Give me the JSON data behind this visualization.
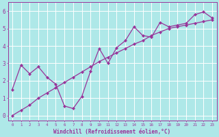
{
  "xlabel": "Windchill (Refroidissement éolien,°C)",
  "bg_color": "#aee8e8",
  "grid_color": "#c8e8e8",
  "line_color": "#993399",
  "xlim": [
    -0.5,
    23.5
  ],
  "ylim": [
    -0.3,
    6.5
  ],
  "xticks": [
    0,
    1,
    2,
    3,
    4,
    5,
    6,
    7,
    8,
    9,
    10,
    11,
    12,
    13,
    14,
    15,
    16,
    17,
    18,
    19,
    20,
    21,
    22,
    23
  ],
  "yticks": [
    0,
    1,
    2,
    3,
    4,
    5,
    6
  ],
  "line1_x": [
    0,
    1,
    2,
    3,
    4,
    5,
    6,
    7,
    8,
    9,
    10,
    11,
    12,
    13,
    14,
    15,
    16,
    17,
    18,
    19,
    20,
    21,
    22,
    23
  ],
  "line1_y": [
    1.5,
    2.9,
    2.4,
    2.8,
    2.2,
    1.8,
    0.55,
    0.4,
    1.1,
    2.55,
    3.85,
    3.0,
    3.9,
    4.3,
    5.1,
    4.6,
    4.5,
    5.35,
    5.1,
    5.2,
    5.3,
    5.8,
    5.95,
    5.6
  ],
  "line2_x": [
    0,
    1,
    2,
    3,
    4,
    5,
    6,
    7,
    8,
    9,
    10,
    11,
    12,
    13,
    14,
    15,
    16,
    17,
    18,
    19,
    20,
    21,
    22,
    23
  ],
  "line2_y": [
    0.0,
    0.3,
    0.6,
    1.0,
    1.3,
    1.6,
    1.9,
    2.2,
    2.5,
    2.8,
    3.1,
    3.35,
    3.6,
    3.85,
    4.1,
    4.3,
    4.6,
    4.8,
    5.0,
    5.1,
    5.2,
    5.3,
    5.4,
    5.5
  ],
  "marker": "D",
  "markersize": 2.2,
  "linewidth": 0.9
}
